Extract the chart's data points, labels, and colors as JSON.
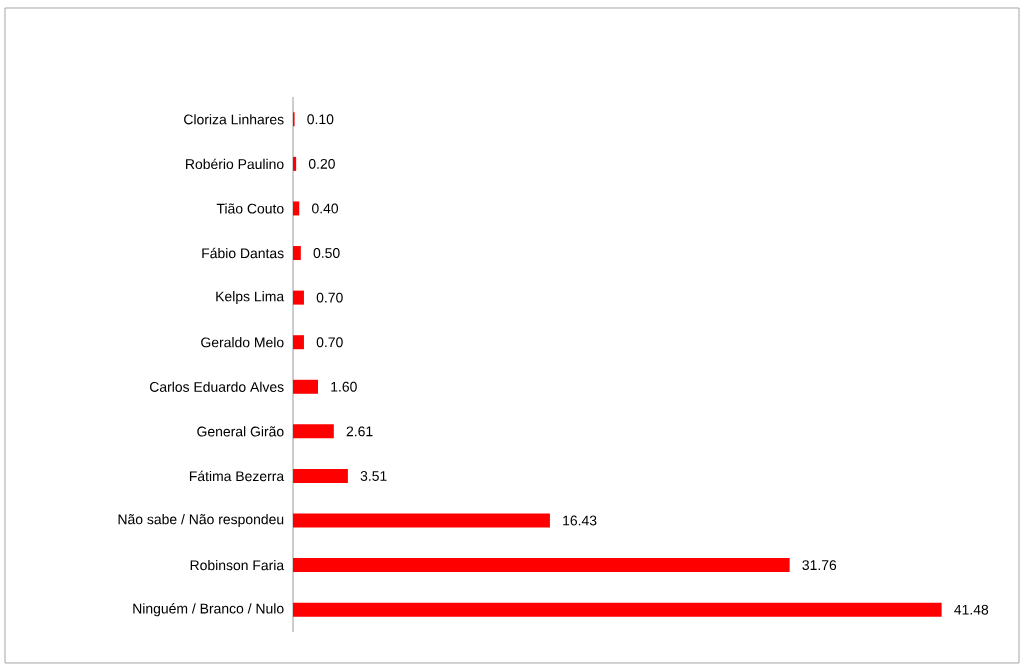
{
  "chart_data": {
    "type": "bar",
    "orientation": "horizontal",
    "color": "#ff0000",
    "categories": [
      "Cloriza Linhares",
      "Robério Paulino",
      "Tião Couto",
      "Fábio Dantas",
      "Kelps Lima",
      "Geraldo Melo",
      "Carlos Eduardo Alves",
      "General Girão",
      "Fátima Bezerra",
      "Não sabe / Não respondeu",
      "Robinson Faria",
      "Ninguém / Branco / Nulo"
    ],
    "values": [
      0.1,
      0.2,
      0.4,
      0.5,
      0.7,
      0.7,
      1.6,
      2.61,
      3.51,
      16.43,
      31.76,
      41.48
    ],
    "value_labels": [
      "0.10",
      "0.20",
      "0.40",
      "0.50",
      "0.70",
      "0.70",
      "1.60",
      "2.61",
      "3.51",
      "16.43",
      "31.76",
      "41.48"
    ]
  }
}
